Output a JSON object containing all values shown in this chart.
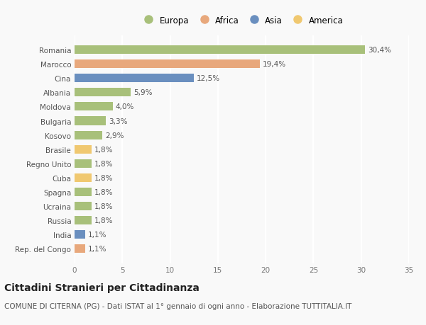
{
  "categories": [
    "Romania",
    "Marocco",
    "Cina",
    "Albania",
    "Moldova",
    "Bulgaria",
    "Kosovo",
    "Brasile",
    "Regno Unito",
    "Cuba",
    "Spagna",
    "Ucraina",
    "Russia",
    "India",
    "Rep. del Congo"
  ],
  "values": [
    30.4,
    19.4,
    12.5,
    5.9,
    4.0,
    3.3,
    2.9,
    1.8,
    1.8,
    1.8,
    1.8,
    1.8,
    1.8,
    1.1,
    1.1
  ],
  "labels": [
    "30,4%",
    "19,4%",
    "12,5%",
    "5,9%",
    "4,0%",
    "3,3%",
    "2,9%",
    "1,8%",
    "1,8%",
    "1,8%",
    "1,8%",
    "1,8%",
    "1,8%",
    "1,1%",
    "1,1%"
  ],
  "colors": [
    "#a8c07a",
    "#e8a87c",
    "#6a8fbf",
    "#a8c07a",
    "#a8c07a",
    "#a8c07a",
    "#a8c07a",
    "#f0c870",
    "#a8c07a",
    "#f0c870",
    "#a8c07a",
    "#a8c07a",
    "#a8c07a",
    "#6a8fbf",
    "#e8a87c"
  ],
  "legend_labels": [
    "Europa",
    "Africa",
    "Asia",
    "America"
  ],
  "legend_colors": [
    "#a8c07a",
    "#e8a87c",
    "#6a8fbf",
    "#f0c870"
  ],
  "xlim": [
    0,
    35
  ],
  "xticks": [
    0,
    5,
    10,
    15,
    20,
    25,
    30,
    35
  ],
  "title": "Cittadini Stranieri per Cittadinanza",
  "subtitle": "COMUNE DI CITERNA (PG) - Dati ISTAT al 1° gennaio di ogni anno - Elaborazione TUTTITALIA.IT",
  "background_color": "#f9f9f9",
  "grid_color": "#ffffff",
  "bar_height": 0.6,
  "title_fontsize": 10,
  "subtitle_fontsize": 7.5,
  "label_fontsize": 7.5,
  "tick_fontsize": 7.5,
  "legend_fontsize": 8.5
}
